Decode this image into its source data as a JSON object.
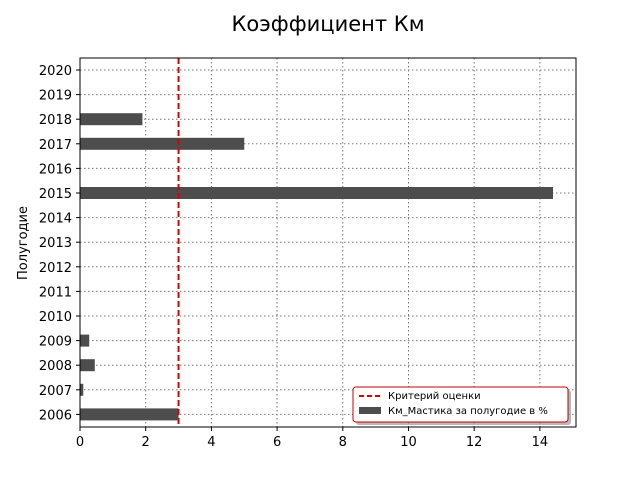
{
  "chart_data": {
    "type": "bar",
    "orientation": "horizontal",
    "title": "Коэффициент Км",
    "xlabel": "",
    "ylabel": "Полугодие",
    "categories": [
      "2006",
      "2007",
      "2008",
      "2009",
      "2010",
      "2011",
      "2012",
      "2013",
      "2014",
      "2015",
      "2016",
      "2017",
      "2018",
      "2019",
      "2020"
    ],
    "series": [
      {
        "name": "Км_Мастика за полугодие в %",
        "color": "#4d4d4d",
        "values": [
          3.0,
          0.1,
          0.45,
          0.28,
          0,
          0,
          0,
          0,
          0,
          14.4,
          0,
          5.0,
          1.9,
          0,
          0
        ]
      }
    ],
    "reference_line": {
      "name": "Критерий оценки",
      "value": 3,
      "color": "#dd0000",
      "style": "dashed"
    },
    "xlim": [
      0,
      15.1
    ],
    "xticks": [
      "0",
      "2",
      "4",
      "6",
      "8",
      "10",
      "12",
      "14"
    ],
    "grid": true,
    "legend_position": "lower-right",
    "legend_border_color": "#cc0000"
  }
}
